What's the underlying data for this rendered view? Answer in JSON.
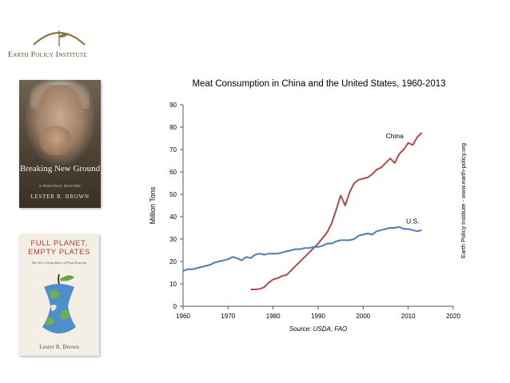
{
  "logo": {
    "text": "Earth Policy Institute"
  },
  "book1": {
    "title": "Breaking New Ground",
    "subtitle": "A Personal History",
    "author": "Lester R. Brown"
  },
  "book2": {
    "title": "Full Planet, Empty Plates",
    "subtitle": "The New Geopolitics of Food Scarcity",
    "author": "Lester R. Brown"
  },
  "colors": {
    "china": "#b04a45",
    "us": "#4a7db3",
    "axis": "#555555"
  },
  "chart_data": {
    "type": "line",
    "title": "Meat Consumption in China and the United States, 1960-2013",
    "xlabel": "",
    "ylabel": "Million Tons",
    "source": "Source: USDA, FAO",
    "credit": "Earth Policy Institute - www.earth-policy.org",
    "xlim": [
      1960,
      2020
    ],
    "ylim": [
      0,
      90
    ],
    "xticks": [
      1960,
      1970,
      1980,
      1990,
      2000,
      2010,
      2020
    ],
    "yticks": [
      0,
      10,
      20,
      30,
      40,
      50,
      60,
      70,
      80,
      90
    ],
    "grid": false,
    "series": [
      {
        "name": "China",
        "color": "#b04a45",
        "x": [
          1975,
          1976,
          1977,
          1978,
          1979,
          1980,
          1981,
          1982,
          1983,
          1984,
          1985,
          1986,
          1987,
          1988,
          1989,
          1990,
          1991,
          1992,
          1993,
          1994,
          1995,
          1996,
          1997,
          1998,
          1999,
          2000,
          2001,
          2002,
          2003,
          2004,
          2005,
          2006,
          2007,
          2008,
          2009,
          2010,
          2011,
          2012,
          2013
        ],
        "y": [
          7.5,
          7.5,
          7.7,
          8.5,
          10.5,
          12,
          12.5,
          13.5,
          14,
          16,
          18,
          20,
          22,
          24,
          26,
          28,
          30.5,
          33,
          37,
          43,
          49.5,
          45,
          51,
          55,
          56.5,
          57,
          57.5,
          59,
          61,
          62,
          64,
          66,
          64,
          68,
          70,
          73,
          72,
          75.5,
          77.5
        ]
      },
      {
        "name": "U.S.",
        "color": "#4a7db3",
        "x": [
          1960,
          1961,
          1962,
          1963,
          1964,
          1965,
          1966,
          1967,
          1968,
          1969,
          1970,
          1971,
          1972,
          1973,
          1974,
          1975,
          1976,
          1977,
          1978,
          1979,
          1980,
          1981,
          1982,
          1983,
          1984,
          1985,
          1986,
          1987,
          1988,
          1989,
          1990,
          1991,
          1992,
          1993,
          1994,
          1995,
          1996,
          1997,
          1998,
          1999,
          2000,
          2001,
          2002,
          2003,
          2004,
          2005,
          2006,
          2007,
          2008,
          2009,
          2010,
          2011,
          2012,
          2013
        ],
        "y": [
          15.8,
          16.5,
          16.5,
          17,
          17.5,
          18,
          18.5,
          19.5,
          20,
          20.5,
          21,
          22,
          21.5,
          20.5,
          22,
          21.5,
          23,
          23.5,
          23,
          23.5,
          23.5,
          23.5,
          24,
          24.5,
          25,
          25.5,
          25.5,
          26,
          26,
          26.5,
          26.5,
          27,
          28,
          28,
          29,
          29.5,
          29.5,
          29.5,
          30,
          31.5,
          32,
          32.5,
          32,
          33.5,
          34,
          34.5,
          35,
          35,
          35.5,
          34.5,
          34.5,
          34,
          33.5,
          34
        ]
      }
    ],
    "annotations": [
      {
        "text": "China",
        "x": 2007,
        "y": 75
      },
      {
        "text": "U.S.",
        "x": 2011,
        "y": 37
      }
    ]
  }
}
